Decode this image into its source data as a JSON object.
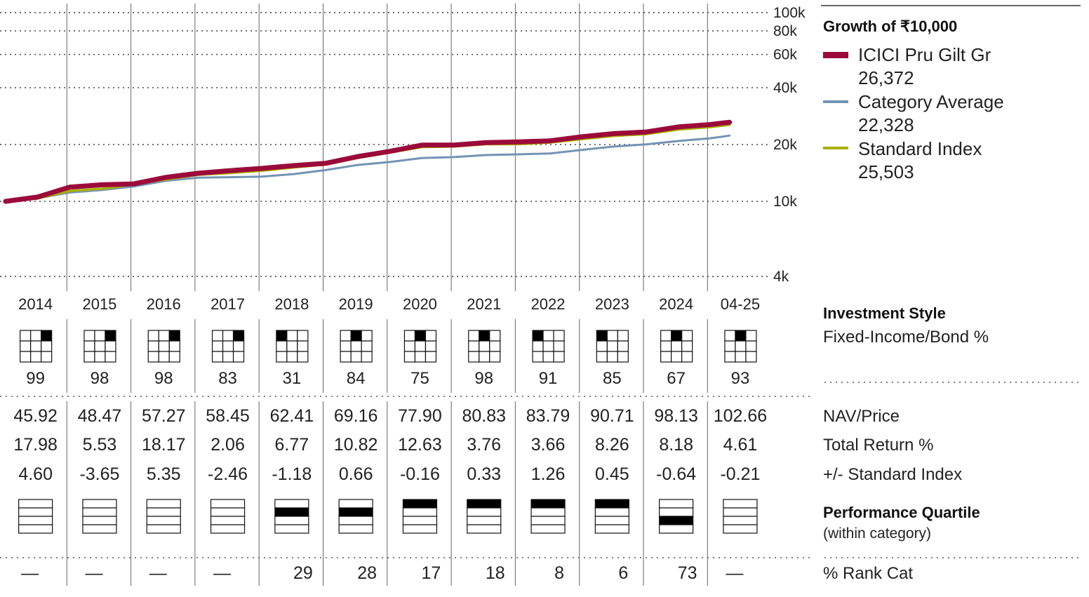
{
  "chart_data": {
    "type": "line",
    "title": "Growth of ₹10,000",
    "y_scale": "log",
    "ylim": [
      4000,
      100000
    ],
    "y_ticks": [
      "100k",
      "80k",
      "60k",
      "40k",
      "20k",
      "10k",
      "4k"
    ],
    "y_tick_values": [
      100000,
      80000,
      60000,
      40000,
      20000,
      10000,
      4000
    ],
    "grid": true,
    "legend_position": "right",
    "categories": [
      "2014",
      "2015",
      "2016",
      "2017",
      "2018",
      "2019",
      "2020",
      "2021",
      "2022",
      "2023",
      "2024",
      "04-25"
    ],
    "series": [
      {
        "name": "ICICI Pru Gilt Gr",
        "final_value": "26,372",
        "color": "#9b0a3a",
        "x": [
          2014.0,
          2014.5,
          2015.0,
          2015.5,
          2016.0,
          2016.5,
          2017.0,
          2017.5,
          2018.0,
          2018.5,
          2019.0,
          2019.5,
          2020.0,
          2020.5,
          2021.0,
          2021.5,
          2022.0,
          2022.5,
          2023.0,
          2023.5,
          2024.0,
          2024.5,
          2025.0,
          2025.3
        ],
        "values": [
          10000,
          10600,
          11800,
          12300,
          12400,
          13300,
          14200,
          14500,
          14900,
          15600,
          15800,
          17300,
          18500,
          19700,
          20000,
          20500,
          20500,
          21100,
          21900,
          22800,
          23500,
          24600,
          25600,
          26372
        ]
      },
      {
        "name": "Category Average",
        "final_value": "22,328",
        "color": "#7393b3",
        "x": [
          2014.0,
          2014.5,
          2015.0,
          2015.5,
          2016.0,
          2016.5,
          2017.0,
          2017.5,
          2018.0,
          2018.5,
          2019.0,
          2019.5,
          2020.0,
          2020.5,
          2021.0,
          2021.5,
          2022.0,
          2022.5,
          2023.0,
          2023.5,
          2024.0,
          2024.5,
          2025.0,
          2025.3
        ],
        "values": [
          10000,
          10400,
          11100,
          11500,
          12000,
          12800,
          13400,
          13400,
          13500,
          14000,
          14600,
          15600,
          16200,
          16900,
          17200,
          17600,
          17700,
          18000,
          18700,
          19500,
          20100,
          20800,
          21600,
          22328
        ]
      },
      {
        "name": "Standard Index",
        "final_value": "25,503",
        "color": "#a9b000",
        "x": [
          2014.0,
          2014.5,
          2015.0,
          2015.5,
          2016.0,
          2016.5,
          2017.0,
          2017.5,
          2018.0,
          2018.5,
          2019.0,
          2019.5,
          2020.0,
          2020.5,
          2021.0,
          2021.5,
          2022.0,
          2022.5,
          2023.0,
          2023.5,
          2024.0,
          2024.5,
          2025.0,
          2025.3
        ],
        "values": [
          9950,
          10400,
          11300,
          11700,
          12300,
          13000,
          13900,
          14100,
          14500,
          15200,
          15600,
          17000,
          18200,
          19300,
          19600,
          20100,
          20000,
          20600,
          21300,
          22200,
          22800,
          23900,
          24800,
          25503
        ]
      }
    ]
  },
  "investment_style": {
    "title": "Investment Style",
    "subtitle": "Fixed-Income/Bond %",
    "boxes": [
      {
        "year": "2014",
        "filled_col": 2,
        "filled_row": 0,
        "pct": "99"
      },
      {
        "year": "2015",
        "filled_col": 2,
        "filled_row": 0,
        "pct": "98"
      },
      {
        "year": "2016",
        "filled_col": 2,
        "filled_row": 0,
        "pct": "98"
      },
      {
        "year": "2017",
        "filled_col": 2,
        "filled_row": 0,
        "pct": "83"
      },
      {
        "year": "2018",
        "filled_col": 0,
        "filled_row": 0,
        "pct": "31"
      },
      {
        "year": "2019",
        "filled_col": 1,
        "filled_row": 0,
        "pct": "84"
      },
      {
        "year": "2020",
        "filled_col": 1,
        "filled_row": 0,
        "pct": "75"
      },
      {
        "year": "2021",
        "filled_col": 1,
        "filled_row": 0,
        "pct": "98"
      },
      {
        "year": "2022",
        "filled_col": 0,
        "filled_row": 0,
        "pct": "91"
      },
      {
        "year": "2023",
        "filled_col": 0,
        "filled_row": 0,
        "pct": "85"
      },
      {
        "year": "2024",
        "filled_col": 1,
        "filled_row": 0,
        "pct": "67"
      },
      {
        "year": "04-25",
        "filled_col": 1,
        "filled_row": 0,
        "pct": "93"
      }
    ]
  },
  "table": {
    "row_labels": [
      "NAV/Price",
      "Total Return %",
      "+/- Standard Index"
    ],
    "rows": [
      [
        "45.92",
        "48.47",
        "57.27",
        "58.45",
        "62.41",
        "69.16",
        "77.90",
        "80.83",
        "83.79",
        "90.71",
        "98.13",
        "102.66"
      ],
      [
        "17.98",
        "5.53",
        "18.17",
        "2.06",
        "6.77",
        "10.82",
        "12.63",
        "3.76",
        "3.66",
        "8.26",
        "8.18",
        "4.61"
      ],
      [
        "4.60",
        "-3.65",
        "5.35",
        "-2.46",
        "-1.18",
        "0.66",
        "-0.16",
        "0.33",
        "1.26",
        "0.45",
        "-0.64",
        "-0.21"
      ]
    ]
  },
  "performance_quartile": {
    "title": "Performance Quartile",
    "subtitle": "(within category)",
    "quartiles": [
      0,
      0,
      0,
      0,
      2,
      2,
      1,
      1,
      1,
      1,
      3,
      0
    ]
  },
  "rank": {
    "label": "% Rank Cat",
    "values": [
      "—",
      "—",
      "—",
      "—",
      "29",
      "28",
      "17",
      "18",
      "8",
      "6",
      "73",
      "—"
    ]
  }
}
